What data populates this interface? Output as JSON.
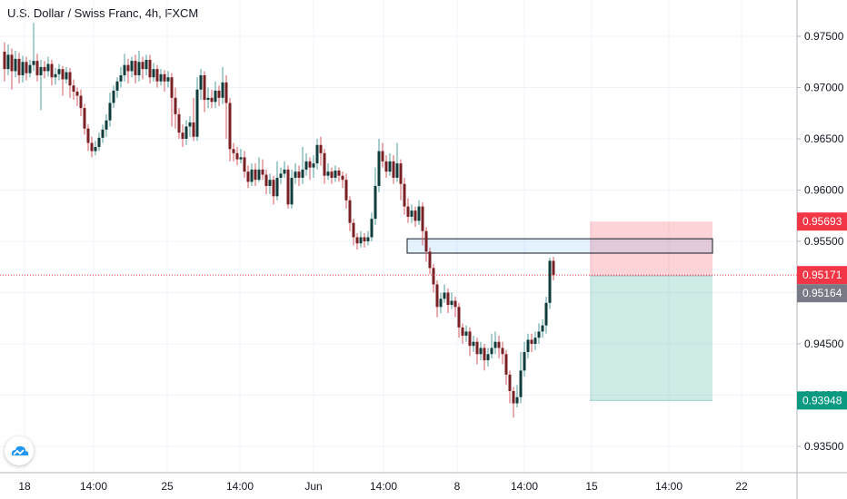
{
  "chart_data": {
    "type": "candlestick",
    "title": "U.S. Dollar / Swiss Franc, 4h, FXCM",
    "ylim": [
      0.9325,
      0.9785
    ],
    "y_ticks": [
      "0.93500",
      "0.94000",
      "0.94500",
      "0.95000",
      "0.95500",
      "0.96000",
      "0.96500",
      "0.97000",
      "0.97500"
    ],
    "x_ticks": [
      "18",
      "14:00",
      "25",
      "14:00",
      "Jun",
      "14:00",
      "8",
      "14:00",
      "15",
      "14:00",
      "22"
    ],
    "price_labels": [
      {
        "value": "0.95693",
        "color": "#f23645"
      },
      {
        "value": "0.95171",
        "color": "#f23645"
      },
      {
        "value": "0.95164",
        "color": "#787b86"
      },
      {
        "value": "0.93948",
        "color": "#089981"
      }
    ],
    "current_price": 0.95171,
    "zone": {
      "top": 0.95525,
      "bottom": 0.95385
    },
    "position": {
      "entry": 0.95164,
      "stop": 0.95693,
      "target": 0.93948
    },
    "candles": [
      [
        0.9735,
        0.9718,
        0.9744,
        0.9706
      ],
      [
        0.9718,
        0.9732,
        0.9742,
        0.9712
      ],
      [
        0.9732,
        0.9716,
        0.9738,
        0.9698
      ],
      [
        0.9716,
        0.9728,
        0.9736,
        0.971
      ],
      [
        0.9728,
        0.9712,
        0.9734,
        0.9704
      ],
      [
        0.9712,
        0.9725,
        0.9731,
        0.9705
      ],
      [
        0.9725,
        0.9714,
        0.973,
        0.9707
      ],
      [
        0.9714,
        0.9722,
        0.9727,
        0.971
      ],
      [
        0.9722,
        0.9726,
        0.9763,
        0.9716
      ],
      [
        0.9726,
        0.9712,
        0.9733,
        0.9706
      ],
      [
        0.9712,
        0.972,
        0.9727,
        0.9678
      ],
      [
        0.972,
        0.9716,
        0.9726,
        0.9709
      ],
      [
        0.9716,
        0.9723,
        0.973,
        0.9711
      ],
      [
        0.9723,
        0.971,
        0.9727,
        0.9702
      ],
      [
        0.971,
        0.9713,
        0.9719,
        0.9703
      ],
      [
        0.9713,
        0.9718,
        0.9723,
        0.9707
      ],
      [
        0.9718,
        0.9708,
        0.9721,
        0.9692
      ],
      [
        0.9708,
        0.9715,
        0.972,
        0.9704
      ],
      [
        0.9715,
        0.9702,
        0.9719,
        0.969
      ],
      [
        0.9702,
        0.9696,
        0.9708,
        0.9688
      ],
      [
        0.9696,
        0.9692,
        0.97,
        0.9682
      ],
      [
        0.9692,
        0.968,
        0.9698,
        0.9672
      ],
      [
        0.968,
        0.966,
        0.9684,
        0.9654
      ],
      [
        0.966,
        0.9646,
        0.9664,
        0.9638
      ],
      [
        0.9646,
        0.9638,
        0.9652,
        0.9632
      ],
      [
        0.9638,
        0.9642,
        0.9648,
        0.9634
      ],
      [
        0.9642,
        0.9651,
        0.9656,
        0.9638
      ],
      [
        0.9651,
        0.9659,
        0.9664,
        0.9646
      ],
      [
        0.9659,
        0.9668,
        0.9674,
        0.9652
      ],
      [
        0.9668,
        0.9685,
        0.9695,
        0.9662
      ],
      [
        0.9685,
        0.9697,
        0.9702,
        0.968
      ],
      [
        0.9697,
        0.9706,
        0.971,
        0.969
      ],
      [
        0.9706,
        0.9712,
        0.972,
        0.97
      ],
      [
        0.9712,
        0.9722,
        0.9733,
        0.9706
      ],
      [
        0.9722,
        0.9716,
        0.9728,
        0.9704
      ],
      [
        0.9716,
        0.9726,
        0.973,
        0.971
      ],
      [
        0.9726,
        0.9712,
        0.9732,
        0.9704
      ],
      [
        0.9712,
        0.9725,
        0.9736,
        0.9706
      ],
      [
        0.9725,
        0.9718,
        0.973,
        0.9708
      ],
      [
        0.9718,
        0.9727,
        0.9732,
        0.9712
      ],
      [
        0.9727,
        0.971,
        0.9732,
        0.9704
      ],
      [
        0.971,
        0.9718,
        0.9724,
        0.9706
      ],
      [
        0.9718,
        0.9706,
        0.9722,
        0.97
      ],
      [
        0.9706,
        0.9713,
        0.9718,
        0.9702
      ],
      [
        0.9713,
        0.9706,
        0.9717,
        0.9696
      ],
      [
        0.9706,
        0.971,
        0.9716,
        0.97
      ],
      [
        0.971,
        0.969,
        0.9714,
        0.9662
      ],
      [
        0.969,
        0.9674,
        0.97,
        0.966
      ],
      [
        0.9674,
        0.9656,
        0.968,
        0.965
      ],
      [
        0.9656,
        0.965,
        0.9664,
        0.9642
      ],
      [
        0.965,
        0.9662,
        0.9668,
        0.9644
      ],
      [
        0.9662,
        0.9666,
        0.9672,
        0.9652
      ],
      [
        0.9666,
        0.9652,
        0.969,
        0.9648
      ],
      [
        0.9652,
        0.9698,
        0.971,
        0.9648
      ],
      [
        0.9698,
        0.9712,
        0.9718,
        0.9688
      ],
      [
        0.9712,
        0.9688,
        0.9716,
        0.9676
      ],
      [
        0.9688,
        0.969,
        0.97,
        0.968
      ],
      [
        0.969,
        0.9686,
        0.9698,
        0.968
      ],
      [
        0.9686,
        0.9697,
        0.9706,
        0.968
      ],
      [
        0.9697,
        0.969,
        0.9702,
        0.9682
      ],
      [
        0.969,
        0.9705,
        0.972,
        0.9684
      ],
      [
        0.9705,
        0.9685,
        0.9712,
        0.965
      ],
      [
        0.9685,
        0.964,
        0.969,
        0.9628
      ],
      [
        0.964,
        0.9636,
        0.9646,
        0.9628
      ],
      [
        0.9636,
        0.963,
        0.9642,
        0.9624
      ],
      [
        0.963,
        0.9632,
        0.964,
        0.9626
      ],
      [
        0.9632,
        0.9618,
        0.9638,
        0.9612
      ],
      [
        0.9618,
        0.9608,
        0.9624,
        0.9602
      ],
      [
        0.9608,
        0.962,
        0.9626,
        0.9604
      ],
      [
        0.962,
        0.961,
        0.9626,
        0.9604
      ],
      [
        0.961,
        0.962,
        0.9632,
        0.9608
      ],
      [
        0.962,
        0.9615,
        0.963,
        0.961
      ],
      [
        0.9615,
        0.9604,
        0.962,
        0.9596
      ],
      [
        0.9604,
        0.961,
        0.9616,
        0.9596
      ],
      [
        0.961,
        0.9594,
        0.9614,
        0.9586
      ],
      [
        0.9594,
        0.9612,
        0.9628,
        0.959
      ],
      [
        0.9612,
        0.9616,
        0.9622,
        0.9606
      ],
      [
        0.9616,
        0.962,
        0.9628,
        0.9612
      ],
      [
        0.962,
        0.9586,
        0.9624,
        0.9582
      ],
      [
        0.9586,
        0.9612,
        0.962,
        0.9582
      ],
      [
        0.9612,
        0.9618,
        0.9626,
        0.9606
      ],
      [
        0.9618,
        0.9612,
        0.9624,
        0.9604
      ],
      [
        0.9612,
        0.962,
        0.9642,
        0.9606
      ],
      [
        0.962,
        0.9628,
        0.9636,
        0.9614
      ],
      [
        0.9628,
        0.9622,
        0.9632,
        0.961
      ],
      [
        0.9622,
        0.9626,
        0.9634,
        0.9612
      ],
      [
        0.9626,
        0.9644,
        0.965,
        0.962
      ],
      [
        0.9644,
        0.9636,
        0.9652,
        0.9624
      ],
      [
        0.9636,
        0.9614,
        0.964,
        0.9606
      ],
      [
        0.9614,
        0.9618,
        0.9626,
        0.961
      ],
      [
        0.9618,
        0.9612,
        0.9622,
        0.9606
      ],
      [
        0.9612,
        0.9619,
        0.9624,
        0.9608
      ],
      [
        0.9619,
        0.9614,
        0.9622,
        0.9608
      ],
      [
        0.9614,
        0.961,
        0.9618,
        0.9602
      ],
      [
        0.961,
        0.959,
        0.9616,
        0.9582
      ],
      [
        0.959,
        0.9568,
        0.9594,
        0.956
      ],
      [
        0.9568,
        0.9554,
        0.9572,
        0.9546
      ],
      [
        0.9554,
        0.9548,
        0.9558,
        0.9542
      ],
      [
        0.9548,
        0.9554,
        0.956,
        0.9544
      ],
      [
        0.9554,
        0.955,
        0.9558,
        0.9544
      ],
      [
        0.955,
        0.9554,
        0.956,
        0.9546
      ],
      [
        0.9554,
        0.9572,
        0.9578,
        0.955
      ],
      [
        0.9572,
        0.9604,
        0.9622,
        0.9566
      ],
      [
        0.9604,
        0.9638,
        0.965,
        0.9598
      ],
      [
        0.9638,
        0.9628,
        0.9646,
        0.9622
      ],
      [
        0.9628,
        0.9618,
        0.9634,
        0.9612
      ],
      [
        0.9618,
        0.9628,
        0.9636,
        0.9614
      ],
      [
        0.9628,
        0.9612,
        0.9634,
        0.9606
      ],
      [
        0.9612,
        0.9626,
        0.9646,
        0.9608
      ],
      [
        0.9626,
        0.9606,
        0.963,
        0.959
      ],
      [
        0.9606,
        0.9584,
        0.9612,
        0.9576
      ],
      [
        0.9584,
        0.9574,
        0.9592,
        0.9568
      ],
      [
        0.9574,
        0.958,
        0.9586,
        0.9568
      ],
      [
        0.958,
        0.957,
        0.9584,
        0.9564
      ],
      [
        0.957,
        0.9584,
        0.959,
        0.9566
      ],
      [
        0.9584,
        0.956,
        0.9588,
        0.9546
      ],
      [
        0.956,
        0.954,
        0.9564,
        0.953
      ],
      [
        0.954,
        0.9524,
        0.9544,
        0.9518
      ],
      [
        0.9524,
        0.9508,
        0.9528,
        0.95
      ],
      [
        0.9508,
        0.9486,
        0.9512,
        0.9476
      ],
      [
        0.9486,
        0.9494,
        0.95,
        0.948
      ],
      [
        0.9494,
        0.95,
        0.9508,
        0.949
      ],
      [
        0.95,
        0.9488,
        0.9504,
        0.948
      ],
      [
        0.9488,
        0.9492,
        0.95,
        0.9484
      ],
      [
        0.9492,
        0.9486,
        0.9496,
        0.9476
      ],
      [
        0.9486,
        0.9466,
        0.949,
        0.9456
      ],
      [
        0.9466,
        0.9458,
        0.947,
        0.945
      ],
      [
        0.9458,
        0.9462,
        0.9468,
        0.9452
      ],
      [
        0.9462,
        0.9448,
        0.9466,
        0.9438
      ],
      [
        0.9448,
        0.9452,
        0.9458,
        0.9442
      ],
      [
        0.9452,
        0.944,
        0.9456,
        0.943
      ],
      [
        0.944,
        0.9446,
        0.9452,
        0.9434
      ],
      [
        0.9446,
        0.9434,
        0.945,
        0.9424
      ],
      [
        0.9434,
        0.944,
        0.9446,
        0.9428
      ],
      [
        0.944,
        0.9446,
        0.946,
        0.9436
      ],
      [
        0.9446,
        0.9452,
        0.9462,
        0.944
      ],
      [
        0.9452,
        0.9446,
        0.9458,
        0.9436
      ],
      [
        0.9446,
        0.944,
        0.9452,
        0.943
      ],
      [
        0.944,
        0.942,
        0.9444,
        0.941
      ],
      [
        0.942,
        0.9404,
        0.9424,
        0.9392
      ],
      [
        0.9404,
        0.9392,
        0.9408,
        0.9378
      ],
      [
        0.9392,
        0.9398,
        0.941,
        0.9388
      ],
      [
        0.9398,
        0.9424,
        0.9442,
        0.9392
      ],
      [
        0.9424,
        0.9442,
        0.9452,
        0.9418
      ],
      [
        0.9442,
        0.9454,
        0.946,
        0.9436
      ],
      [
        0.9454,
        0.945,
        0.946,
        0.9442
      ],
      [
        0.945,
        0.9456,
        0.9462,
        0.9444
      ],
      [
        0.9456,
        0.9462,
        0.947,
        0.945
      ],
      [
        0.9462,
        0.9468,
        0.9474,
        0.9456
      ],
      [
        0.9468,
        0.949,
        0.9496,
        0.946
      ],
      [
        0.949,
        0.9531,
        0.9534,
        0.9484
      ],
      [
        0.9531,
        0.9517,
        0.9535,
        0.9512
      ]
    ]
  },
  "logo": {
    "icon": "cloud-logo-icon",
    "color": "#2196f3"
  }
}
